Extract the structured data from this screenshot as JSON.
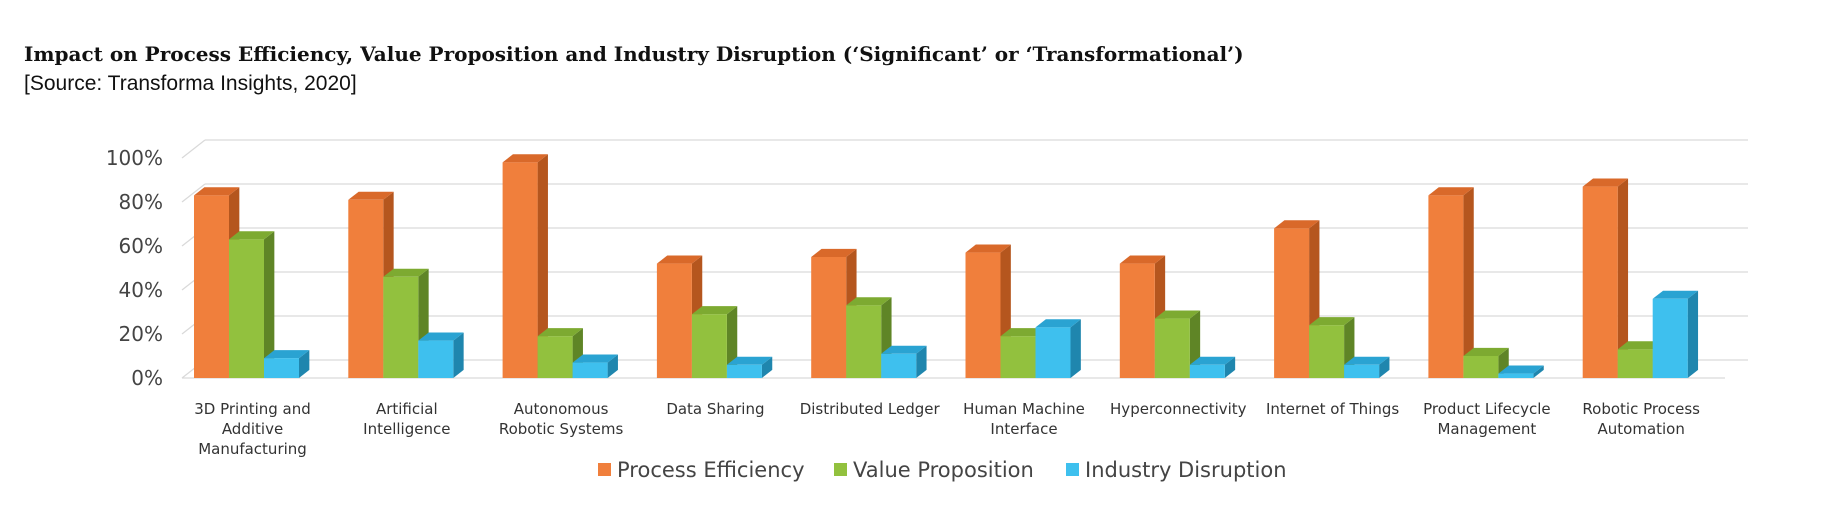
{
  "chart_data": {
    "type": "bar",
    "title": "Impact on Process Efficiency, Value Proposition and Industry Disruption (‘Significant’ or ‘Transformational’)",
    "subtitle": "[Source: Transforma Insights, 2020]",
    "categories": [
      [
        "3D Printing and",
        "Additive",
        "Manufacturing"
      ],
      [
        "Artificial",
        "Intelligence"
      ],
      [
        "Autonomous",
        "Robotic Systems"
      ],
      [
        "Data Sharing"
      ],
      [
        "Distributed Ledger"
      ],
      [
        "Human Machine",
        "Interface"
      ],
      [
        "Hyperconnectivity"
      ],
      [
        "Internet of Things"
      ],
      [
        "Product Lifecycle",
        "Management"
      ],
      [
        "Robotic Process",
        "Automation"
      ]
    ],
    "series": [
      {
        "name": "Process Efficiency",
        "color": "#F07F3C",
        "side": "#B5561E",
        "top": "#D9692A",
        "values": [
          83,
          81,
          98,
          52,
          55,
          57,
          52,
          68,
          83,
          87
        ]
      },
      {
        "name": "Value Proposition",
        "color": "#92C13E",
        "side": "#5F8526",
        "top": "#7DAA31",
        "values": [
          63,
          46,
          19,
          29,
          33,
          19,
          27,
          24,
          10,
          13
        ]
      },
      {
        "name": "Industry Disruption",
        "color": "#3EC0EE",
        "side": "#1F86AE",
        "top": "#2AA3D2",
        "values": [
          9,
          17,
          7,
          6,
          11,
          23,
          6,
          6,
          2,
          36
        ]
      }
    ],
    "yticks": [
      "0%",
      "20%",
      "40%",
      "60%",
      "80%",
      "100%"
    ],
    "ylim": [
      0,
      100
    ],
    "grid": true,
    "legend": "bottom"
  }
}
